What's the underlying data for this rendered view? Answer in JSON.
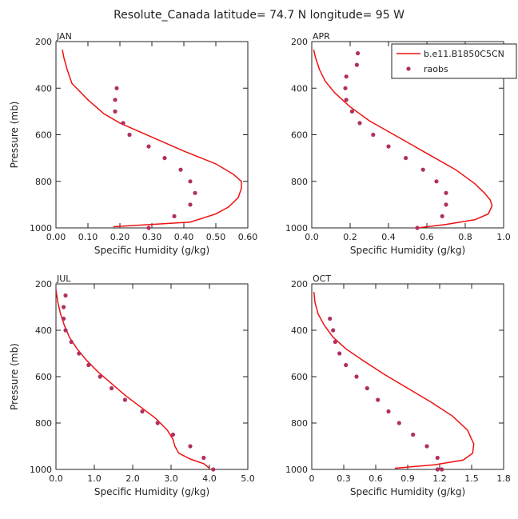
{
  "figure_title": "Resolute_Canada   latitude= 74.7 N longitude= 95 W",
  "legend": {
    "model_label": "b.e11.B1850C5CN",
    "obs_label": "raobs"
  },
  "colors": {
    "model": "#ee1111",
    "obs": "#b03060"
  },
  "chart_data": [
    {
      "type": "line",
      "panel": "JAN",
      "xlabel": "Specific Humidity (g/kg)",
      "ylabel": "Pressure (mb)",
      "xlim": [
        0,
        0.6
      ],
      "ylim": [
        1000,
        200
      ],
      "xticks": [
        "0.00",
        "0.10",
        "0.20",
        "0.30",
        "0.40",
        "0.50",
        "0.60"
      ],
      "xtick_values": [
        0,
        0.1,
        0.2,
        0.3,
        0.4,
        0.5,
        0.6
      ],
      "yticks": [
        "200",
        "400",
        "600",
        "800",
        "1000"
      ],
      "ytick_values": [
        200,
        400,
        600,
        800,
        1000
      ],
      "series": [
        {
          "name": "b.e11.B1850C5CN",
          "kind": "line",
          "x": [
            0.02,
            0.025,
            0.035,
            0.05,
            0.1,
            0.15,
            0.2,
            0.3,
            0.4,
            0.5,
            0.555,
            0.58,
            0.58,
            0.57,
            0.54,
            0.5,
            0.42,
            0.18
          ],
          "y": [
            235,
            270,
            320,
            380,
            450,
            510,
            550,
            610,
            670,
            725,
            770,
            800,
            830,
            870,
            910,
            940,
            975,
            995
          ]
        },
        {
          "name": "raobs",
          "kind": "scatter",
          "x": [
            0.19,
            0.185,
            0.185,
            0.21,
            0.23,
            0.29,
            0.34,
            0.39,
            0.42,
            0.435,
            0.42,
            0.37,
            0.29
          ],
          "y": [
            400,
            450,
            500,
            550,
            600,
            650,
            700,
            750,
            800,
            850,
            900,
            950,
            1000
          ]
        }
      ]
    },
    {
      "type": "line",
      "panel": "APR",
      "xlabel": "Specific Humidity (g/kg)",
      "ylabel": "",
      "xlim": [
        0,
        1.0
      ],
      "ylim": [
        1000,
        200
      ],
      "xticks": [
        "0.0",
        "0.2",
        "0.4",
        "0.6",
        "0.8",
        "1.0"
      ],
      "xtick_values": [
        0,
        0.2,
        0.4,
        0.6,
        0.8,
        1.0
      ],
      "yticks": [
        "200",
        "400",
        "600",
        "800",
        "1000"
      ],
      "ytick_values": [
        200,
        400,
        600,
        800,
        1000
      ],
      "series": [
        {
          "name": "b.e11.B1850C5CN",
          "kind": "line",
          "x": [
            0.01,
            0.02,
            0.04,
            0.07,
            0.12,
            0.2,
            0.3,
            0.45,
            0.6,
            0.75,
            0.85,
            0.9,
            0.93,
            0.94,
            0.92,
            0.85,
            0.7,
            0.5
          ],
          "y": [
            235,
            270,
            320,
            370,
            420,
            480,
            540,
            610,
            680,
            750,
            810,
            850,
            880,
            905,
            940,
            965,
            985,
            1005
          ]
        },
        {
          "name": "raobs",
          "kind": "scatter",
          "x": [
            0.24,
            0.235,
            0.18,
            0.175,
            0.18,
            0.21,
            0.25,
            0.32,
            0.4,
            0.49,
            0.58,
            0.65,
            0.7,
            0.7,
            0.68,
            0.55
          ],
          "y": [
            250,
            300,
            350,
            400,
            450,
            500,
            550,
            600,
            650,
            700,
            750,
            800,
            850,
            900,
            950,
            1000
          ]
        }
      ]
    },
    {
      "type": "line",
      "panel": "JUL",
      "xlabel": "Specific Humidity (g/kg)",
      "ylabel": "Pressure (mb)",
      "xlim": [
        0,
        5.0
      ],
      "ylim": [
        1000,
        200
      ],
      "xticks": [
        "0.0",
        "1.0",
        "2.0",
        "3.0",
        "4.0",
        "5.0"
      ],
      "xtick_values": [
        0,
        1,
        2,
        3,
        4,
        5
      ],
      "yticks": [
        "200",
        "400",
        "600",
        "800",
        "1000"
      ],
      "ytick_values": [
        200,
        400,
        600,
        800,
        1000
      ],
      "series": [
        {
          "name": "b.e11.B1850C5CN",
          "kind": "line",
          "x": [
            0.0,
            0.05,
            0.12,
            0.22,
            0.35,
            0.55,
            0.8,
            1.1,
            1.45,
            1.8,
            2.2,
            2.6,
            2.9,
            3.05,
            3.1,
            3.2,
            3.5,
            3.85,
            4.0
          ],
          "y": [
            225,
            280,
            330,
            380,
            430,
            480,
            530,
            580,
            630,
            680,
            730,
            780,
            830,
            870,
            900,
            930,
            955,
            975,
            995
          ]
        },
        {
          "name": "raobs",
          "kind": "scatter",
          "x": [
            0.25,
            0.2,
            0.2,
            0.25,
            0.4,
            0.6,
            0.85,
            1.15,
            1.45,
            1.8,
            2.25,
            2.65,
            3.05,
            3.5,
            3.85,
            4.1
          ],
          "y": [
            250,
            300,
            350,
            400,
            450,
            500,
            550,
            600,
            650,
            700,
            750,
            800,
            850,
            900,
            950,
            1000
          ]
        }
      ]
    },
    {
      "type": "line",
      "panel": "OCT",
      "xlabel": "Specific Humidity (g/kg)",
      "ylabel": "",
      "xlim": [
        0,
        1.8
      ],
      "ylim": [
        1000,
        200
      ],
      "xticks": [
        "0",
        "0.3",
        "0.6",
        "0.9",
        "1.2",
        "1.5",
        "1.8"
      ],
      "xtick_values": [
        0,
        0.3,
        0.6,
        0.9,
        1.2,
        1.5,
        1.8
      ],
      "yticks": [
        "200",
        "400",
        "600",
        "800",
        "1000"
      ],
      "ytick_values": [
        200,
        400,
        600,
        800,
        1000
      ],
      "series": [
        {
          "name": "b.e11.B1850C5CN",
          "kind": "line",
          "x": [
            0.02,
            0.03,
            0.06,
            0.12,
            0.2,
            0.32,
            0.48,
            0.68,
            0.9,
            1.12,
            1.32,
            1.46,
            1.52,
            1.51,
            1.42,
            1.15,
            0.78
          ],
          "y": [
            235,
            280,
            330,
            380,
            430,
            480,
            530,
            590,
            650,
            710,
            770,
            830,
            890,
            930,
            960,
            980,
            995
          ]
        },
        {
          "name": "raobs",
          "kind": "scatter",
          "x": [
            0.17,
            0.2,
            0.22,
            0.26,
            0.32,
            0.42,
            0.52,
            0.62,
            0.72,
            0.82,
            0.95,
            1.08,
            1.18,
            1.22,
            1.18
          ],
          "y": [
            350,
            400,
            450,
            500,
            550,
            600,
            650,
            700,
            750,
            800,
            850,
            900,
            950,
            1000,
            1000
          ]
        }
      ]
    }
  ]
}
